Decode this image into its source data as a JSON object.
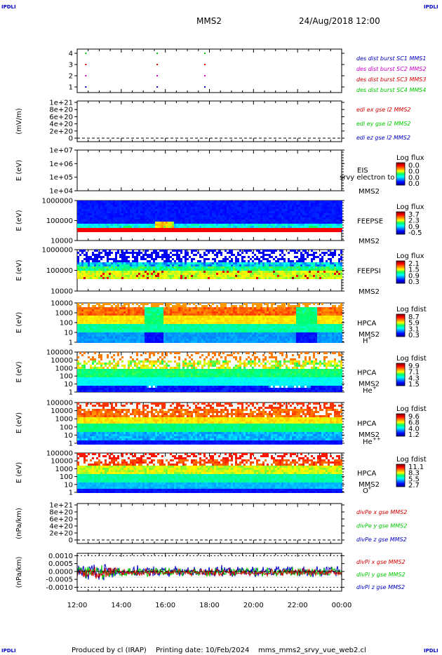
{
  "header": {
    "corner_tl": "IPDLI",
    "corner_tr": "IPDLI",
    "corner_bl": "IPDLI",
    "corner_br": "IPDLI",
    "mission": "MMS2",
    "datetime": "24/Aug/2018 12:00"
  },
  "footer": {
    "produced_by": "Produced by cl (IRAP)",
    "printing_date": "Printing date: 10/Feb/2024",
    "filename": "mms_mms2_srvy_vue_web2.cl"
  },
  "colors": {
    "red": "#d40000",
    "green": "#00c800",
    "blue": "#0000c0",
    "magenta": "#d000d0",
    "black": "#000000"
  },
  "chart_data": [
    {
      "type": "scatter",
      "ylim": [
        0.6,
        4.4
      ],
      "yticks": [
        "4",
        "3",
        "2",
        "1"
      ],
      "legend": [
        {
          "text": "des dist burst SC1 MMS1",
          "color": "#0000c0"
        },
        {
          "text": "des dist burst SC2 MMS2",
          "color": "#d000d0"
        },
        {
          "text": "des dist burst SC3 MMS3",
          "color": "#d40000"
        },
        {
          "text": "des dist burst SC4 MMS4",
          "color": "#00c800"
        }
      ]
    },
    {
      "type": "line",
      "ylabel": "(mV/m)",
      "yticks": [
        "1e+21",
        "8e+20",
        "6e+20",
        "4e+20",
        "2e+20",
        "0"
      ],
      "legend": [
        {
          "text": "edi ex gse l2 MMS2",
          "color": "#d40000"
        },
        {
          "text": "edi ey gse l2 MMS2",
          "color": "#00c800"
        },
        {
          "text": "edi ez gse l2 MMS2",
          "color": "#0000c0"
        }
      ]
    },
    {
      "type": "heatmap",
      "ylabel": "E (eV)",
      "yticks": [
        "1e+07",
        "1e+06",
        "1e+05",
        "1e+04"
      ],
      "instrument": "EIS",
      "overlay": "srvy electron to",
      "spacecraft": "MMS2",
      "cbar_title": "Log flux",
      "cbar_ticks": [
        "0.0",
        "0.0",
        "0.0",
        "0.0"
      ]
    },
    {
      "type": "heatmap",
      "ylabel": "E (eV)",
      "yticks": [
        "1000000",
        "100000",
        "10000"
      ],
      "instrument": "FEEPSE",
      "spacecraft": "MMS2",
      "cbar_title": "Log flux",
      "cbar_ticks": [
        "3.7",
        "2.3",
        "0.9",
        "-0.5"
      ]
    },
    {
      "type": "heatmap",
      "ylabel": "E (eV)",
      "yticks": [
        "1000000",
        "100000",
        "10000"
      ],
      "instrument": "FEEPSI",
      "spacecraft": "MMS2",
      "cbar_title": "Log flux",
      "cbar_ticks": [
        "2.1",
        "1.5",
        "0.9",
        "0.3"
      ]
    },
    {
      "type": "heatmap",
      "ylabel": "E (eV)",
      "yticks": [
        "10000",
        "1000",
        "100",
        "10",
        "1"
      ],
      "instrument": "HPCA",
      "spacecraft": "MMS2",
      "species": "H",
      "species_sup": "+",
      "cbar_title": "Log fdist",
      "cbar_ticks": [
        "8.7",
        "5.9",
        "3.1",
        "0.3"
      ]
    },
    {
      "type": "heatmap",
      "ylabel": "E (eV)",
      "yticks": [
        "100000",
        "10000",
        "1000",
        "100",
        "10",
        "1"
      ],
      "instrument": "HPCA",
      "spacecraft": "MMS2",
      "species": "He",
      "species_sup": "+",
      "cbar_title": "Log fdist",
      "cbar_ticks": [
        "9.9",
        "7.1",
        "4.3",
        "1.5"
      ]
    },
    {
      "type": "heatmap",
      "ylabel": "E (eV)",
      "yticks": [
        "100000",
        "10000",
        "1000",
        "100",
        "10",
        "1"
      ],
      "instrument": "HPCA",
      "spacecraft": "MMS2",
      "species": "He",
      "species_sup": "++",
      "cbar_title": "Log fdist",
      "cbar_ticks": [
        "9.6",
        "6.8",
        "4.0",
        "1.2"
      ]
    },
    {
      "type": "heatmap",
      "ylabel": "E (eV)",
      "yticks": [
        "100000",
        "10000",
        "1000",
        "100",
        "10",
        "1"
      ],
      "instrument": "HPCA",
      "spacecraft": "MMS2",
      "species": "O",
      "species_sup": "+",
      "cbar_title": "Log fdist",
      "cbar_ticks": [
        "11.1",
        "8.3",
        "5.5",
        "2.7"
      ]
    },
    {
      "type": "line",
      "ylabel": "(nPa/km)",
      "yticks": [
        "1e+21",
        "8e+20",
        "6e+20",
        "4e+20",
        "2e+20",
        "0"
      ],
      "legend": [
        {
          "text": "divPe x gse MMS2",
          "color": "#d40000"
        },
        {
          "text": "divPe y gse MMS2",
          "color": "#00c800"
        },
        {
          "text": "divPe z gse MMS2",
          "color": "#0000c0"
        }
      ]
    },
    {
      "type": "line",
      "ylabel": "(nPa/km)",
      "yticks": [
        "0.0010",
        "0.0005",
        "0.0000",
        "-0.0005",
        "-0.0010"
      ],
      "ylim": [
        -0.00125,
        0.00115
      ],
      "legend": [
        {
          "text": "divPi x gse MMS2",
          "color": "#d40000"
        },
        {
          "text": "divPi y gse MMS2",
          "color": "#00c800"
        },
        {
          "text": "divPi z gse MMS2",
          "color": "#0000c0"
        }
      ],
      "xticks": [
        "12:00",
        "14:00",
        "16:00",
        "18:00",
        "20:00",
        "22:00",
        "00:00"
      ]
    }
  ]
}
